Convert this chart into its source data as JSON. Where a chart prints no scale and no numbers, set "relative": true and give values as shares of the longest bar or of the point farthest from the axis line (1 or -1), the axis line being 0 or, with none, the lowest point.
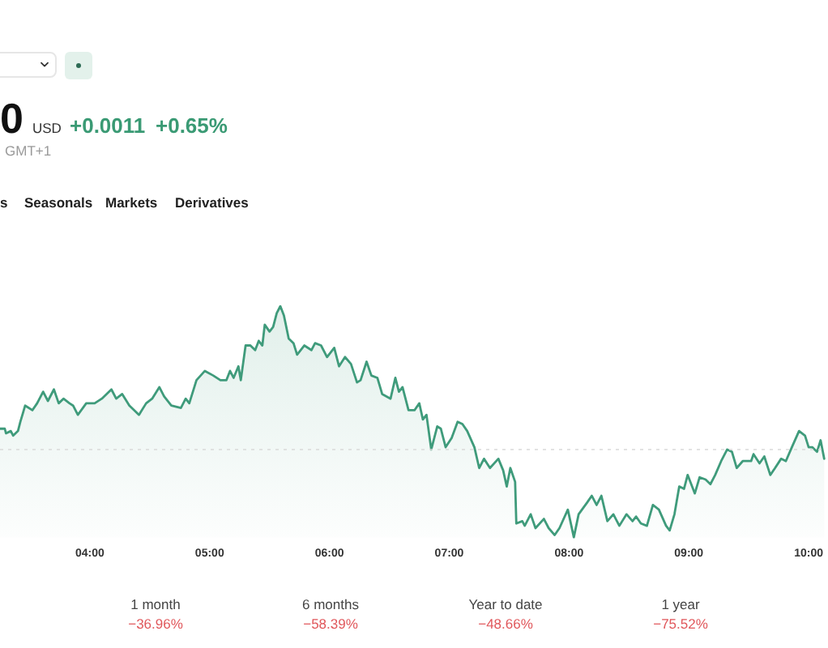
{
  "chart_data": {
    "type": "area",
    "relative": true,
    "x": [
      3.25,
      3.29,
      3.3,
      3.34,
      3.36,
      3.4,
      3.42,
      3.46,
      3.52,
      3.56,
      3.61,
      3.65,
      3.7,
      3.74,
      3.78,
      3.83,
      3.86,
      3.9,
      3.97,
      4.04,
      4.1,
      4.18,
      4.22,
      4.27,
      4.33,
      4.41,
      4.47,
      4.52,
      4.58,
      4.62,
      4.68,
      4.76,
      4.8,
      4.83,
      4.89,
      4.96,
      5.03,
      5.09,
      5.14,
      5.17,
      5.2,
      5.24,
      5.26,
      5.3,
      5.34,
      5.38,
      5.41,
      5.44,
      5.46,
      5.5,
      5.53,
      5.56,
      5.59,
      5.62,
      5.66,
      5.7,
      5.73,
      5.79,
      5.85,
      5.88,
      5.93,
      5.98,
      6.04,
      6.08,
      6.13,
      6.18,
      6.23,
      6.26,
      6.31,
      6.35,
      6.4,
      6.44,
      6.51,
      6.55,
      6.58,
      6.61,
      6.66,
      6.71,
      6.75,
      6.78,
      6.81,
      6.85,
      6.9,
      6.93,
      6.97,
      7.02,
      7.07,
      7.11,
      7.15,
      7.21,
      7.25,
      7.29,
      7.34,
      7.41,
      7.45,
      7.48,
      7.51,
      7.55,
      7.56,
      7.61,
      7.63,
      7.68,
      7.72,
      7.79,
      7.83,
      7.88,
      7.92,
      7.99,
      8.04,
      8.08,
      8.15,
      8.19,
      8.23,
      8.27,
      8.32,
      8.37,
      8.42,
      8.48,
      8.53,
      8.56,
      8.6,
      8.65,
      8.7,
      8.75,
      8.81,
      8.84,
      8.88,
      8.92,
      8.96,
      8.99,
      9.05,
      9.09,
      9.14,
      9.18,
      9.22,
      9.27,
      9.32,
      9.36,
      9.4,
      9.45,
      9.52,
      9.54,
      9.59,
      9.63,
      9.68,
      9.72,
      9.77,
      9.81,
      9.86,
      9.92,
      9.97,
      10.0,
      10.03,
      10.07,
      10.1,
      10.13
    ],
    "series": [
      {
        "color": "#3f9b7b",
        "values": [
          0.47,
          0.47,
          0.45,
          0.46,
          0.44,
          0.46,
          0.5,
          0.57,
          0.55,
          0.58,
          0.63,
          0.59,
          0.64,
          0.58,
          0.6,
          0.58,
          0.57,
          0.53,
          0.58,
          0.58,
          0.6,
          0.64,
          0.6,
          0.62,
          0.57,
          0.53,
          0.58,
          0.6,
          0.65,
          0.61,
          0.57,
          0.56,
          0.6,
          0.58,
          0.68,
          0.72,
          0.7,
          0.68,
          0.68,
          0.72,
          0.69,
          0.74,
          0.68,
          0.83,
          0.83,
          0.81,
          0.85,
          0.83,
          0.92,
          0.89,
          0.91,
          0.97,
          1.0,
          0.96,
          0.86,
          0.84,
          0.79,
          0.83,
          0.81,
          0.84,
          0.83,
          0.78,
          0.82,
          0.74,
          0.78,
          0.75,
          0.67,
          0.68,
          0.76,
          0.7,
          0.69,
          0.62,
          0.6,
          0.69,
          0.63,
          0.65,
          0.55,
          0.55,
          0.58,
          0.51,
          0.53,
          0.38,
          0.48,
          0.47,
          0.39,
          0.43,
          0.5,
          0.49,
          0.46,
          0.39,
          0.3,
          0.34,
          0.3,
          0.34,
          0.29,
          0.22,
          0.3,
          0.24,
          0.06,
          0.07,
          0.05,
          0.1,
          0.04,
          0.08,
          0.04,
          0.01,
          0.04,
          0.12,
          0.0,
          0.1,
          0.15,
          0.18,
          0.14,
          0.18,
          0.07,
          0.1,
          0.05,
          0.1,
          0.07,
          0.09,
          0.06,
          0.05,
          0.14,
          0.12,
          0.05,
          0.03,
          0.1,
          0.22,
          0.21,
          0.27,
          0.19,
          0.26,
          0.25,
          0.23,
          0.27,
          0.33,
          0.38,
          0.37,
          0.3,
          0.33,
          0.33,
          0.36,
          0.32,
          0.35,
          0.27,
          0.3,
          0.34,
          0.33,
          0.39,
          0.46,
          0.44,
          0.39,
          0.39,
          0.37,
          0.42,
          0.34
        ]
      }
    ],
    "xlim": [
      3.25,
      10.13
    ],
    "xticks": [
      {
        "value": 4,
        "label": "04:00"
      },
      {
        "value": 5,
        "label": "05:00"
      },
      {
        "value": 6,
        "label": "06:00"
      },
      {
        "value": 7,
        "label": "07:00"
      },
      {
        "value": 8,
        "label": "08:00"
      },
      {
        "value": 9,
        "label": "09:00"
      },
      {
        "value": 10,
        "label": "10:00"
      }
    ],
    "ref_lines": [
      {
        "axis": "y",
        "value": 0.38,
        "line_style": "dotted",
        "color": "#d9d9d9"
      }
    ],
    "annotations": [
      "0",
      "USD",
      "+0.0011",
      "+0.65%",
      "GMT+1",
      "s",
      "Seasonals",
      "Markets",
      "Derivatives",
      "1 month",
      "−36.96%",
      "6 months",
      "−58.39%",
      "Year to date",
      "−48.66%",
      "1 year",
      "−75.52%"
    ]
  }
}
